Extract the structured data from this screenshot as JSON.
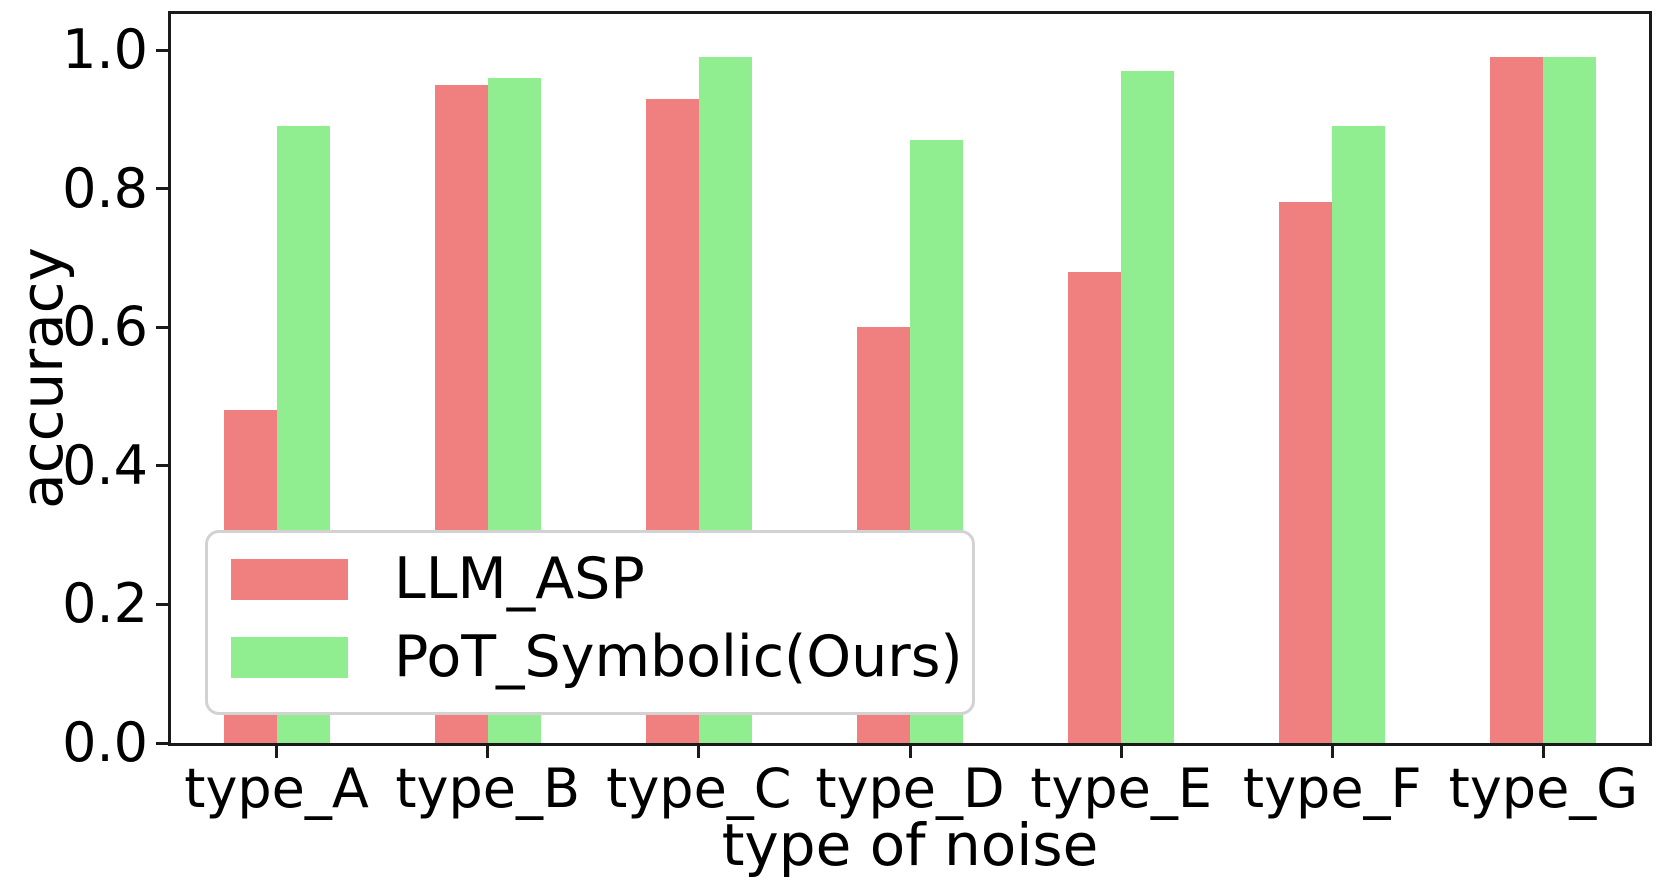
{
  "figure": {
    "ylabel": "accuracy",
    "xlabel": "type of noise"
  },
  "chart_data": {
    "type": "bar",
    "categories": [
      "type_A",
      "type_B",
      "type_C",
      "type_D",
      "type_E",
      "type_F",
      "type_G"
    ],
    "series": [
      {
        "name": "LLM_ASP",
        "color": "#f08080",
        "values": [
          0.48,
          0.95,
          0.93,
          0.6,
          0.68,
          0.78,
          0.99
        ]
      },
      {
        "name": "PoT_Symbolic(Ours)",
        "color": "#90ee90",
        "values": [
          0.89,
          0.96,
          0.99,
          0.87,
          0.97,
          0.89,
          0.99
        ]
      }
    ],
    "title": "",
    "xlabel": "type of noise",
    "ylabel": "accuracy",
    "ylim": [
      0,
      1.055
    ],
    "yticks": [
      "0.0",
      "0.2",
      "0.4",
      "0.6",
      "0.8",
      "1.0"
    ],
    "grid": false,
    "legend_position": "lower left",
    "axis_color": "#1a1a1a",
    "legend_border_color": "#d2d2d2"
  }
}
